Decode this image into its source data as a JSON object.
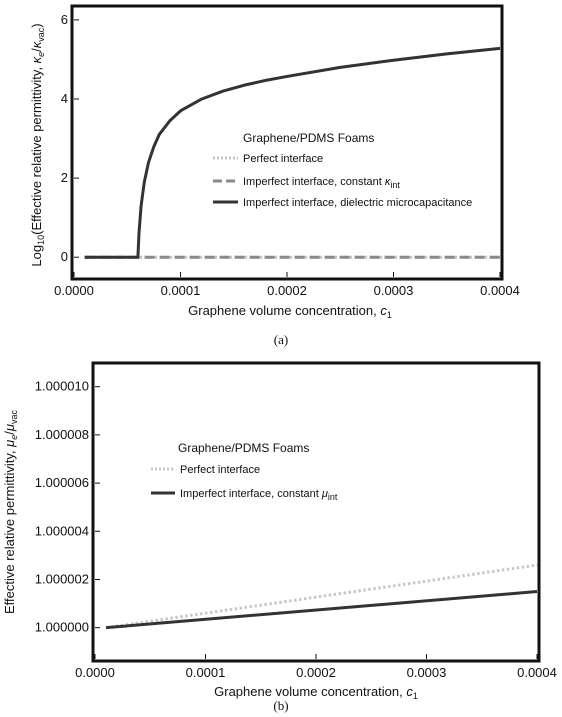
{
  "chart_data": [
    {
      "type": "line",
      "ylabel_text": "Log",
      "ylabel_sub": "10",
      "ylabel_rest": "(Effective relative permittivity, ",
      "ylabel_kappa": "κ",
      "ylabel_e": "e",
      "ylabel_slash": "/",
      "ylabel_kappa2": "κ",
      "ylabel_vac": "vac",
      "ylabel_close": ")",
      "xlabel_text": "Graphene volume concentration, ",
      "xlabel_c": "c",
      "xlabel_sub": "1",
      "xlim": [
        0,
        0.0004
      ],
      "ylim": [
        -0.5,
        6.3
      ],
      "xticks": [
        "0.0000",
        "0.0001",
        "0.0002",
        "0.0003",
        "0.0004"
      ],
      "xtick_values": [
        0,
        0.0001,
        0.0002,
        0.0003,
        0.0004
      ],
      "yticks": [
        "0",
        "2",
        "4",
        "6"
      ],
      "ytick_values": [
        0,
        2,
        4,
        6
      ],
      "legend_title": "Graphene/PDMS Foams",
      "legend_placement": "center-right",
      "series": [
        {
          "name": "Perfect interface",
          "style": "dotted",
          "color": "#c4c4c4",
          "x": [
            1e-05,
            0.0004
          ],
          "y": [
            0,
            0
          ]
        },
        {
          "name": "Imperfect interface, constant ",
          "name_symbol": "κ",
          "name_sub": "int",
          "style": "dashed",
          "color": "#8a8a8a",
          "x": [
            1e-05,
            0.0004
          ],
          "y": [
            0,
            0
          ]
        },
        {
          "name": "Imperfect interface, dielectric microcapacitance",
          "style": "solid",
          "color": "#333333",
          "x": [
            1e-05,
            6e-05,
            6.1e-05,
            6.3e-05,
            6.6e-05,
            7e-05,
            7.5e-05,
            8e-05,
            9e-05,
            0.0001,
            0.00012,
            0.00014,
            0.00016,
            0.00018,
            0.0002,
            0.00025,
            0.0003,
            0.00035,
            0.0004
          ],
          "y": [
            0,
            0,
            0.6,
            1.3,
            1.9,
            2.4,
            2.8,
            3.1,
            3.45,
            3.7,
            4.0,
            4.2,
            4.35,
            4.47,
            4.57,
            4.8,
            4.98,
            5.14,
            5.28
          ]
        }
      ],
      "caption": "(a)"
    },
    {
      "type": "line",
      "ylabel_text": "Effective relative permittivity, ",
      "ylabel_mu": "μ",
      "ylabel_e": "e",
      "ylabel_slash": "/",
      "ylabel_mu2": "μ",
      "ylabel_vac": "vac",
      "xlabel_text": "Graphene volume concentration, ",
      "xlabel_c": "c",
      "xlabel_sub": "1",
      "xlim": [
        0,
        0.0004
      ],
      "ylim": [
        0.9999987,
        1.0000109
      ],
      "xticks": [
        "0.0000",
        "0.0001",
        "0.0002",
        "0.0003",
        "0.0004"
      ],
      "xtick_values": [
        0,
        0.0001,
        0.0002,
        0.0003,
        0.0004
      ],
      "yticks": [
        "1.000000",
        "1.000002",
        "1.000004",
        "1.000006",
        "1.000008",
        "1.000010"
      ],
      "ytick_values": [
        1.0,
        1.000002,
        1.000004,
        1.000006,
        1.000008,
        1.00001
      ],
      "legend_title": "Graphene/PDMS Foams",
      "legend_placement": "center-left",
      "series": [
        {
          "name": "Perfect interface",
          "style": "dotted",
          "color": "#c8c8c8",
          "x": [
            1e-05,
            0.0004
          ],
          "y": [
            1.0,
            1.0000026
          ]
        },
        {
          "name": "Imperfect interface, constant ",
          "name_symbol": "μ",
          "name_sub": "int",
          "style": "solid",
          "color": "#333333",
          "x": [
            1e-05,
            0.0004
          ],
          "y": [
            1.0,
            1.0000015
          ]
        }
      ],
      "caption": "(b)"
    }
  ]
}
